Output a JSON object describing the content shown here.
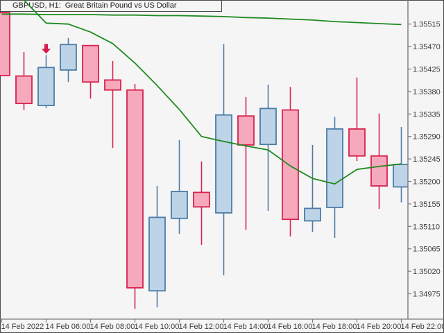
{
  "window": {
    "title": "GBPUSD, H1:  Great Britain Pound vs US Dollar"
  },
  "colors": {
    "background": "#f5f5f5",
    "frame": "#4a4a4a",
    "bull_fill": "#bdd3e8",
    "bull_border": "#4d7ba6",
    "bear_fill": "#f6a8bc",
    "bear_border": "#d6234f",
    "ma_line": "#1f8a1f",
    "marker": "#d81b4e",
    "axis_line": "#7a7a7a",
    "axis_text": "#3c3c3c",
    "title_text": "#1a1a1a"
  },
  "chart_data": {
    "type": "candlestick",
    "symbol": "GBPUSD",
    "timeframe": "H1",
    "title": "GBPUSD, H1:  Great Britain Pound vs US Dollar",
    "grid": false,
    "legend": false,
    "y_axis": {
      "side": "right",
      "tick_step": 0.00045,
      "ticks": [
        1.35515,
        1.3547,
        1.35425,
        1.3538,
        1.35335,
        1.3529,
        1.35245,
        1.352,
        1.35155,
        1.3511,
        1.35065,
        1.3502,
        1.34975
      ]
    },
    "x_axis": {
      "candles_per_label": 2,
      "labels": [
        "14 Feb 2022",
        "14 Feb 06:00",
        "14 Feb 08:00",
        "14 Feb 10:00",
        "14 Feb 12:00",
        "14 Feb 14:00",
        "14 Feb 16:00",
        "14 Feb 18:00",
        "14 Feb 20:00",
        "14 Feb 22:00"
      ]
    },
    "candles": [
      {
        "dir": "bear",
        "o": 1.35538,
        "h": 1.35538,
        "l": 1.35412,
        "c": 1.35412
      },
      {
        "dir": "bear",
        "o": 1.35411,
        "h": 1.35459,
        "l": 1.35343,
        "c": 1.35356
      },
      {
        "dir": "bull",
        "o": 1.35352,
        "h": 1.35453,
        "l": 1.35347,
        "c": 1.35428
      },
      {
        "dir": "bull",
        "o": 1.35423,
        "h": 1.35487,
        "l": 1.35399,
        "c": 1.35474
      },
      {
        "dir": "bear",
        "o": 1.35472,
        "h": 1.35472,
        "l": 1.35366,
        "c": 1.35399
      },
      {
        "dir": "bear",
        "o": 1.35403,
        "h": 1.35441,
        "l": 1.35267,
        "c": 1.35383
      },
      {
        "dir": "bear",
        "o": 1.35383,
        "h": 1.35395,
        "l": 1.34945,
        "c": 1.34987
      },
      {
        "dir": "bull",
        "o": 1.34981,
        "h": 1.35191,
        "l": 1.34948,
        "c": 1.35128
      },
      {
        "dir": "bull",
        "o": 1.35126,
        "h": 1.35283,
        "l": 1.35095,
        "c": 1.3518
      },
      {
        "dir": "bear",
        "o": 1.35178,
        "h": 1.3524,
        "l": 1.35073,
        "c": 1.35149
      },
      {
        "dir": "bull",
        "o": 1.35137,
        "h": 1.35475,
        "l": 1.35012,
        "c": 1.35333
      },
      {
        "dir": "bear",
        "o": 1.35331,
        "h": 1.35369,
        "l": 1.35103,
        "c": 1.35273
      },
      {
        "dir": "bull",
        "o": 1.35274,
        "h": 1.35394,
        "l": 1.35141,
        "c": 1.35346
      },
      {
        "dir": "bear",
        "o": 1.35343,
        "h": 1.35389,
        "l": 1.3509,
        "c": 1.35124
      },
      {
        "dir": "bull",
        "o": 1.35121,
        "h": 1.35273,
        "l": 1.35099,
        "c": 1.35146
      },
      {
        "dir": "bull",
        "o": 1.35148,
        "h": 1.35329,
        "l": 1.35087,
        "c": 1.35305
      },
      {
        "dir": "bear",
        "o": 1.35305,
        "h": 1.35408,
        "l": 1.35241,
        "c": 1.35251
      },
      {
        "dir": "bear",
        "o": 1.35251,
        "h": 1.35336,
        "l": 1.35145,
        "c": 1.35191
      },
      {
        "dir": "bull",
        "o": 1.35189,
        "h": 1.35309,
        "l": 1.35158,
        "c": 1.35234
      }
    ],
    "overlays": [
      {
        "name": "ma-slow",
        "values": [
          1.35535,
          1.35535,
          1.35534,
          1.35534,
          1.35534,
          1.35533,
          1.35533,
          1.35532,
          1.35532,
          1.35531,
          1.3553,
          1.35528,
          1.35527,
          1.35525,
          1.35523,
          1.3552,
          1.35518,
          1.35516,
          1.35514
        ]
      },
      {
        "name": "ma-fast",
        "values": [
          null,
          1.35563,
          1.35517,
          1.35515,
          1.35499,
          1.35476,
          1.35437,
          1.35392,
          1.35344,
          1.3529,
          1.3528,
          1.35271,
          1.35263,
          1.35231,
          1.35206,
          1.35195,
          1.35224,
          1.3523,
          1.35235
        ]
      }
    ],
    "markers": [
      {
        "type": "sell-arrow",
        "direction": "down",
        "candle_index": 2
      }
    ]
  }
}
